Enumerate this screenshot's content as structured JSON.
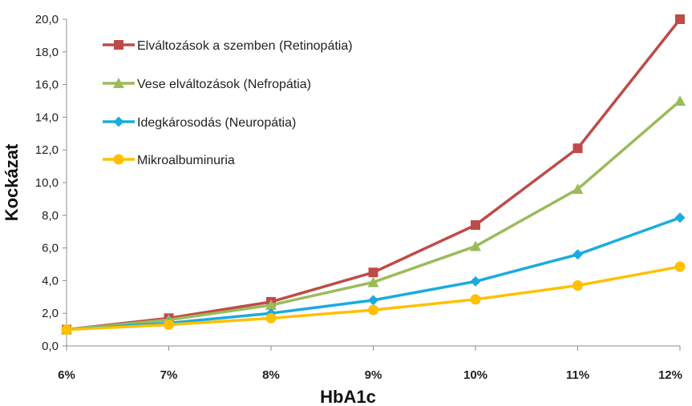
{
  "chart_data": {
    "type": "line",
    "title": "",
    "xlabel": "HbA1c",
    "ylabel": "Kockázat",
    "categories": [
      "6%",
      "7%",
      "8%",
      "9%",
      "10%",
      "11%",
      "12%"
    ],
    "ylim": [
      0,
      20
    ],
    "yticks": [
      "0,0",
      "2,0",
      "4,0",
      "6,0",
      "8,0",
      "10,0",
      "12,0",
      "14,0",
      "16,0",
      "18,0",
      "20,0"
    ],
    "grid": false,
    "legend_position": "top-left",
    "series": [
      {
        "name": "Elváltozások a szemben (Retinopátia)",
        "color": "#be4b48",
        "marker": "square",
        "values": [
          1.0,
          1.7,
          2.7,
          4.5,
          7.4,
          12.1,
          20.0
        ]
      },
      {
        "name": "Vese elváltozások (Nefropátia)",
        "color": "#9bbb59",
        "marker": "triangle",
        "values": [
          1.0,
          1.6,
          2.5,
          3.9,
          6.1,
          9.6,
          15.0
        ]
      },
      {
        "name": "Idegkárosodás (Neuropátia)",
        "color": "#1aabdf",
        "marker": "diamond",
        "values": [
          1.0,
          1.4,
          2.0,
          2.8,
          3.95,
          5.6,
          7.85
        ]
      },
      {
        "name": "Mikroalbuminuria",
        "color": "#ffc000",
        "marker": "circle",
        "values": [
          1.0,
          1.3,
          1.7,
          2.2,
          2.85,
          3.7,
          4.85
        ]
      }
    ]
  }
}
